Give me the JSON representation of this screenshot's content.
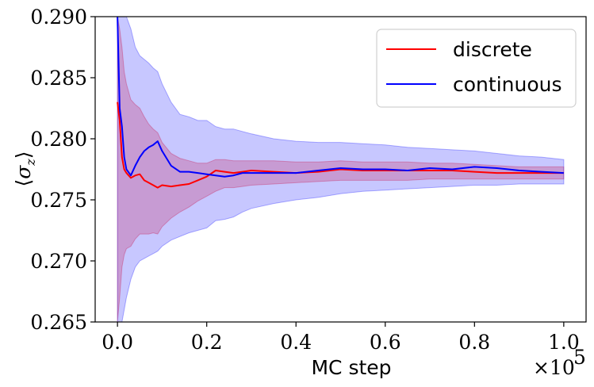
{
  "chart_data": {
    "type": "line",
    "xlabel": "MC step",
    "ylabel": "⟨σ_z⟩",
    "x_multiplier_label": "×10^5",
    "xlim": [
      -0.05,
      1.05
    ],
    "ylim": [
      0.265,
      0.29
    ],
    "x_ticks": [
      0.0,
      0.2,
      0.4,
      0.6,
      0.8,
      1.0
    ],
    "x_tick_labels": [
      "0.0",
      "0.2",
      "0.4",
      "0.6",
      "0.8",
      "1.0"
    ],
    "y_ticks": [
      0.265,
      0.27,
      0.275,
      0.28,
      0.285,
      0.29
    ],
    "y_tick_labels": [
      "0.265",
      "0.270",
      "0.275",
      "0.280",
      "0.285",
      "0.290"
    ],
    "legend_position": "top-right",
    "grid": false,
    "series": [
      {
        "name": "discrete",
        "color": "#ff0000",
        "band_color": "#ff0000",
        "x": [
          0.0,
          0.005,
          0.01,
          0.015,
          0.02,
          0.03,
          0.04,
          0.05,
          0.06,
          0.07,
          0.08,
          0.09,
          0.1,
          0.12,
          0.14,
          0.16,
          0.18,
          0.2,
          0.22,
          0.24,
          0.26,
          0.28,
          0.3,
          0.35,
          0.4,
          0.45,
          0.5,
          0.55,
          0.6,
          0.65,
          0.7,
          0.75,
          0.8,
          0.85,
          0.9,
          0.95,
          1.0
        ],
        "y": [
          0.283,
          0.2815,
          0.2785,
          0.2775,
          0.2772,
          0.2768,
          0.277,
          0.2771,
          0.2766,
          0.2764,
          0.2762,
          0.276,
          0.2762,
          0.2761,
          0.2762,
          0.2763,
          0.2766,
          0.2769,
          0.2774,
          0.2773,
          0.2772,
          0.2773,
          0.2774,
          0.2773,
          0.2772,
          0.2773,
          0.2775,
          0.2774,
          0.2774,
          0.2774,
          0.2774,
          0.2774,
          0.2773,
          0.2772,
          0.2772,
          0.2772,
          0.2772
        ],
        "lower": [
          0.265,
          0.267,
          0.2695,
          0.2705,
          0.271,
          0.2712,
          0.2718,
          0.2722,
          0.2722,
          0.2722,
          0.2723,
          0.2722,
          0.2728,
          0.2735,
          0.274,
          0.2744,
          0.2749,
          0.2753,
          0.2757,
          0.276,
          0.276,
          0.2761,
          0.2762,
          0.2763,
          0.2764,
          0.2765,
          0.2766,
          0.2766,
          0.2766,
          0.2766,
          0.2767,
          0.2767,
          0.2767,
          0.2767,
          0.2767,
          0.2767,
          0.2767
        ],
        "upper": [
          0.29,
          0.289,
          0.2875,
          0.2855,
          0.2845,
          0.2832,
          0.2828,
          0.2825,
          0.2818,
          0.2812,
          0.2808,
          0.2805,
          0.2797,
          0.2788,
          0.2784,
          0.2782,
          0.278,
          0.278,
          0.2783,
          0.2783,
          0.2782,
          0.2782,
          0.2782,
          0.2782,
          0.2781,
          0.2781,
          0.2782,
          0.2781,
          0.2781,
          0.2781,
          0.278,
          0.278,
          0.2779,
          0.2778,
          0.2777,
          0.2777,
          0.2777
        ]
      },
      {
        "name": "continuous",
        "color": "#0000ff",
        "band_color": "#0000ff",
        "x": [
          0.0,
          0.005,
          0.01,
          0.015,
          0.02,
          0.03,
          0.04,
          0.05,
          0.06,
          0.07,
          0.08,
          0.09,
          0.1,
          0.12,
          0.14,
          0.16,
          0.18,
          0.2,
          0.22,
          0.24,
          0.26,
          0.28,
          0.3,
          0.35,
          0.4,
          0.45,
          0.5,
          0.55,
          0.6,
          0.65,
          0.7,
          0.75,
          0.8,
          0.85,
          0.9,
          0.95,
          1.0
        ],
        "y": [
          0.29,
          0.2825,
          0.281,
          0.2785,
          0.2775,
          0.277,
          0.2778,
          0.2785,
          0.279,
          0.2793,
          0.2795,
          0.2798,
          0.279,
          0.2778,
          0.2773,
          0.2773,
          0.2772,
          0.2771,
          0.277,
          0.2769,
          0.277,
          0.2772,
          0.2772,
          0.2772,
          0.2772,
          0.2774,
          0.2776,
          0.2775,
          0.2775,
          0.2774,
          0.2776,
          0.2775,
          0.2777,
          0.2776,
          0.2774,
          0.2773,
          0.2772
        ],
        "lower": [
          0.265,
          0.265,
          0.265,
          0.266,
          0.267,
          0.2685,
          0.2695,
          0.27,
          0.2702,
          0.2704,
          0.2706,
          0.2708,
          0.2712,
          0.2717,
          0.272,
          0.2723,
          0.2725,
          0.2727,
          0.2733,
          0.2734,
          0.2736,
          0.274,
          0.2743,
          0.2747,
          0.275,
          0.2752,
          0.2755,
          0.2757,
          0.2758,
          0.2759,
          0.276,
          0.2761,
          0.2762,
          0.2762,
          0.2763,
          0.2763,
          0.2763
        ],
        "upper": [
          0.29,
          0.29,
          0.29,
          0.29,
          0.29,
          0.289,
          0.2875,
          0.2868,
          0.2865,
          0.2862,
          0.2858,
          0.2855,
          0.2845,
          0.283,
          0.282,
          0.2818,
          0.2815,
          0.2815,
          0.281,
          0.2808,
          0.2808,
          0.2806,
          0.2804,
          0.28,
          0.2798,
          0.2797,
          0.2797,
          0.2796,
          0.2795,
          0.2793,
          0.2792,
          0.2791,
          0.279,
          0.2788,
          0.2786,
          0.2785,
          0.2783
        ]
      }
    ]
  }
}
